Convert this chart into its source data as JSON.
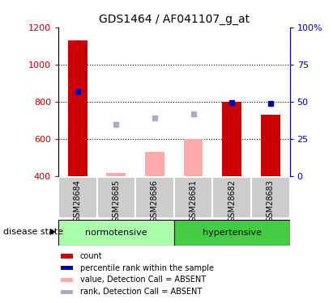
{
  "title": "GDS1464 / AF041107_g_at",
  "samples": [
    "GSM28684",
    "GSM28685",
    "GSM28686",
    "GSM28681",
    "GSM28682",
    "GSM28683"
  ],
  "bar_values_red": [
    1130,
    null,
    null,
    null,
    800,
    730
  ],
  "bar_values_pink": [
    null,
    415,
    530,
    600,
    null,
    null
  ],
  "dot_blue": [
    855,
    null,
    null,
    null,
    795,
    790
  ],
  "dot_lightblue": [
    null,
    675,
    710,
    735,
    null,
    null
  ],
  "ylim_left": [
    400,
    1200
  ],
  "ylim_right": [
    0,
    100
  ],
  "yticks_left": [
    400,
    600,
    800,
    1000,
    1200
  ],
  "yticks_right": [
    0,
    25,
    50,
    75,
    100
  ],
  "ytick_labels_right": [
    "0",
    "25",
    "50",
    "75",
    "100%"
  ],
  "color_red": "#cc0000",
  "color_pink": "#ffaaaa",
  "color_blue": "#0000bb",
  "color_lightblue": "#aaaacc",
  "color_norm_bg": "#aaffaa",
  "color_hyper_bg": "#44cc44",
  "color_sample_bg": "#cccccc",
  "group_label_norm": "normotensive",
  "group_label_hyper": "hypertensive",
  "disease_state_label": "disease state",
  "legend_items": [
    "count",
    "percentile rank within the sample",
    "value, Detection Call = ABSENT",
    "rank, Detection Call = ABSENT"
  ],
  "legend_colors": [
    "#cc0000",
    "#0000bb",
    "#ffaaaa",
    "#aaaacc"
  ],
  "grid_lines": [
    600,
    800,
    1000
  ],
  "bar_width": 0.5
}
